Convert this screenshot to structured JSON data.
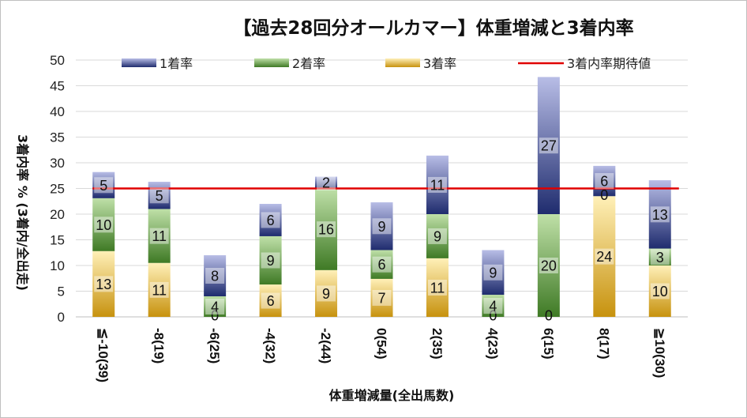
{
  "chart_data": {
    "type": "bar",
    "stacked": true,
    "title": "【過去28回分オールカマー】体重増減と3着内率",
    "xlabel": "体重増減量(全出馬数)",
    "ylabel": "3着内率 % (3着内/全出走)",
    "ylim": [
      0,
      50
    ],
    "y_ticks": [
      "0",
      "5",
      "10",
      "15",
      "20",
      "25",
      "30",
      "35",
      "40",
      "45",
      "50"
    ],
    "grid": true,
    "legend_position": "top",
    "categories": [
      "≦-10(39)",
      "-8(19)",
      "-6(25)",
      "-4(32)",
      "-2(44)",
      "0(54)",
      "2(35)",
      "4(23)",
      "6(15)",
      "8(17)",
      "≧10(30)"
    ],
    "series": [
      {
        "name": "3着率",
        "color": "#d9a520",
        "values": [
          12.8,
          10.5,
          0,
          6.3,
          9.1,
          7.4,
          11.4,
          0,
          0,
          23.5,
          10.0
        ]
      },
      {
        "name": "2着率",
        "color": "#4e8a2f",
        "values": [
          10.3,
          10.5,
          4.0,
          9.4,
          15.9,
          5.6,
          8.6,
          4.3,
          20.0,
          0,
          3.3
        ]
      },
      {
        "name": "1着率",
        "color": "#283780",
        "values": [
          5.1,
          5.3,
          8.0,
          6.3,
          2.3,
          9.3,
          11.4,
          8.7,
          26.7,
          5.9,
          13.3
        ]
      }
    ],
    "data_labels": [
      [
        "13",
        "10",
        "5"
      ],
      [
        "11",
        "11",
        "5"
      ],
      [
        "0",
        "4",
        "8"
      ],
      [
        "6",
        "9",
        "6"
      ],
      [
        "9",
        "16",
        "2"
      ],
      [
        "7",
        "6",
        "9"
      ],
      [
        "11",
        "9",
        "11"
      ],
      [
        "0",
        "4",
        "9"
      ],
      [
        "0",
        "20",
        "27"
      ],
      [
        "24",
        "0",
        "6"
      ],
      [
        "10",
        "3",
        "13"
      ]
    ],
    "reference_line": {
      "name": "3着内率期待値",
      "value": 25,
      "color": "#e00000"
    }
  }
}
